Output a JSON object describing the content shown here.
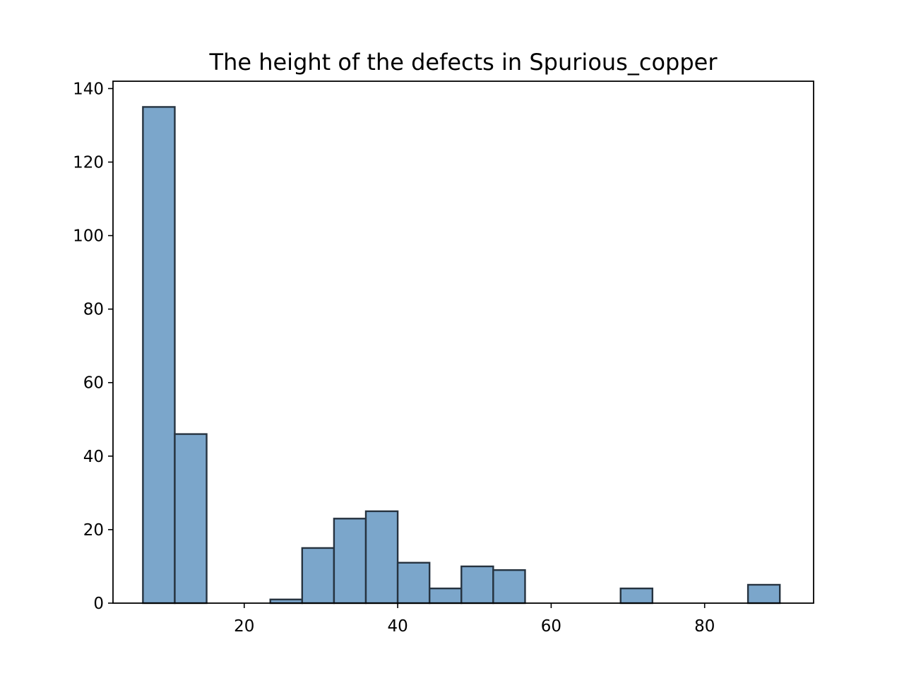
{
  "chart_data": {
    "type": "bar",
    "title": "The height of the defects in Spurious_copper",
    "xlabel": "",
    "ylabel": "",
    "xlim": [
      2.9,
      94.2
    ],
    "ylim": [
      0,
      142
    ],
    "xticks": [
      20,
      40,
      60,
      80
    ],
    "yticks": [
      0,
      20,
      40,
      60,
      80,
      100,
      120,
      140
    ],
    "bin_edges": [
      6.8,
      10.95,
      15.1,
      19.25,
      23.4,
      27.55,
      31.7,
      35.85,
      40.0,
      44.15,
      48.3,
      52.45,
      56.6,
      60.75,
      64.9,
      69.05,
      73.2,
      77.35,
      81.5,
      85.65,
      89.8
    ],
    "values": [
      135,
      46,
      0,
      0,
      1,
      15,
      23,
      25,
      11,
      4,
      10,
      9,
      0,
      0,
      0,
      4,
      0,
      0,
      0,
      5
    ],
    "bar_color": "#7ba6cb",
    "edge_color": "#263340",
    "grid": false
  }
}
